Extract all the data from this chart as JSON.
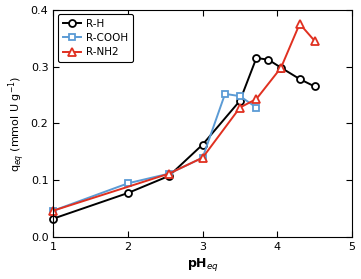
{
  "title": "",
  "xlabel": "pH$_{eq}$",
  "ylabel": "q$_{eq}$ (mmol U g$^{-1}$)",
  "xlim": [
    1,
    5
  ],
  "ylim": [
    0,
    0.4
  ],
  "xticks": [
    1,
    2,
    3,
    4,
    5
  ],
  "yticks": [
    0,
    0.1,
    0.2,
    0.3,
    0.4
  ],
  "series": [
    {
      "label": "R-H",
      "color": "black",
      "marker": "o",
      "markersize": 5,
      "x": [
        1.0,
        2.0,
        2.55,
        3.0,
        3.5,
        3.72,
        3.88,
        4.05,
        4.3,
        4.5
      ],
      "y": [
        0.033,
        0.078,
        0.108,
        0.163,
        0.24,
        0.315,
        0.312,
        0.298,
        0.278,
        0.265
      ]
    },
    {
      "label": "R-COOH",
      "color": "#5b9bd5",
      "marker": "s",
      "markersize": 5,
      "x": [
        1.0,
        2.0,
        2.55,
        3.0,
        3.3,
        3.5,
        3.72
      ],
      "y": [
        0.047,
        0.095,
        0.112,
        0.14,
        0.252,
        0.248,
        0.228
      ]
    },
    {
      "label": "R-NH2",
      "color": "#e03020",
      "marker": "^",
      "markersize": 6,
      "x": [
        1.0,
        2.55,
        3.0,
        3.5,
        3.72,
        4.05,
        4.3,
        4.5
      ],
      "y": [
        0.047,
        0.112,
        0.14,
        0.228,
        0.243,
        0.298,
        0.375,
        0.345
      ]
    }
  ]
}
